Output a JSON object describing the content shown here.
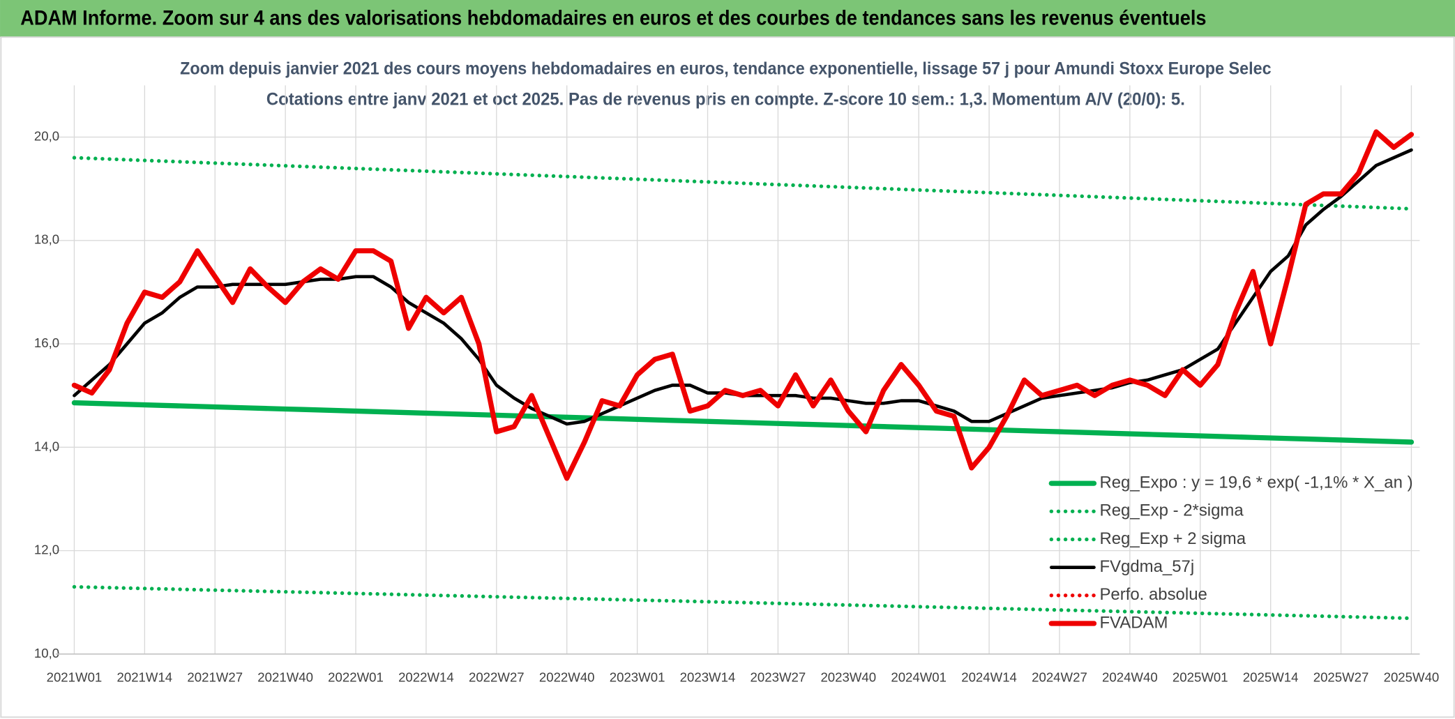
{
  "chart_data": {
    "type": "line",
    "header": "ADAM Informe. Zoom sur 4 ans des valorisations hebdomadaires en euros et des courbes de tendances sans les revenus éventuels",
    "title": "Zoom depuis janvier 2021 des cours moyens hebdomadaires en euros, tendance exponentielle, lissage 57 j pour Amundi Stoxx Europe Selec",
    "subtitle": "Cotations entre janv 2021 et oct 2025. Pas de revenus pris en compte. Z-score 10 sem.: 1,3. Momentum A/V (20/0): 5.",
    "categories": [
      "2021W01",
      null,
      null,
      null,
      "2021W14",
      null,
      null,
      null,
      "2021W27",
      null,
      null,
      null,
      "2021W40",
      null,
      null,
      null,
      "2022W01",
      null,
      null,
      null,
      "2022W14",
      null,
      null,
      null,
      "2022W27",
      null,
      null,
      null,
      "2022W40",
      null,
      null,
      null,
      "2023W01",
      null,
      null,
      null,
      "2023W14",
      null,
      null,
      null,
      "2023W27",
      null,
      null,
      null,
      "2023W40",
      null,
      null,
      null,
      "2024W01",
      null,
      null,
      null,
      "2024W14",
      null,
      null,
      null,
      "2024W27",
      null,
      null,
      null,
      "2024W40",
      null,
      null,
      null,
      "2025W01",
      null,
      null,
      null,
      "2025W14",
      null,
      null,
      null,
      "2025W27",
      null,
      null,
      null,
      "2025W40"
    ],
    "ylim": [
      10,
      21
    ],
    "yticks": [
      {
        "value": 10,
        "label": "10,0"
      },
      {
        "value": 12,
        "label": "12,0"
      },
      {
        "value": 14,
        "label": "14,0"
      },
      {
        "value": 16,
        "label": "16,0"
      },
      {
        "value": 18,
        "label": "18,0"
      },
      {
        "value": 20,
        "label": "20,0"
      }
    ],
    "grid": true,
    "legend": "lower right",
    "series": [
      {
        "name": "Reg_Expo : y = 19,6 * exp( -1,1% *  X_an )",
        "color": "#00b050",
        "line_style": "solid",
        "values": [
          14.86,
          14.85,
          14.84,
          14.83,
          14.82,
          14.81,
          14.8,
          14.79,
          14.78,
          14.77,
          14.76,
          14.75,
          14.74,
          14.73,
          14.72,
          14.71,
          14.7,
          14.69,
          14.68,
          14.67,
          14.66,
          14.65,
          14.64,
          14.63,
          14.62,
          14.61,
          14.6,
          14.59,
          14.58,
          14.57,
          14.56,
          14.55,
          14.54,
          14.53,
          14.52,
          14.51,
          14.5,
          14.49,
          14.48,
          14.47,
          14.46,
          14.45,
          14.44,
          14.43,
          14.42,
          14.41,
          14.4,
          14.39,
          14.38,
          14.37,
          14.36,
          14.35,
          14.34,
          14.33,
          14.32,
          14.31,
          14.3,
          14.29,
          14.28,
          14.27,
          14.26,
          14.25,
          14.24,
          14.23,
          14.22,
          14.21,
          14.2,
          14.19,
          14.18,
          14.17,
          14.16,
          14.15,
          14.14,
          14.13,
          14.12,
          14.11,
          14.1
        ]
      },
      {
        "name": "Reg_Exp - 2*sigma",
        "color": "#00b050",
        "line_style": "dotted",
        "values": [
          11.3,
          11.292,
          11.284,
          11.276,
          11.268,
          11.26,
          11.252,
          11.244,
          11.236,
          11.228,
          11.22,
          11.212,
          11.204,
          11.196,
          11.188,
          11.18,
          11.172,
          11.164,
          11.156,
          11.148,
          11.14,
          11.132,
          11.124,
          11.116,
          11.108,
          11.1,
          11.092,
          11.084,
          11.076,
          11.068,
          11.06,
          11.052,
          11.044,
          11.036,
          11.028,
          11.02,
          11.012,
          11.004,
          10.996,
          10.988,
          10.98,
          10.972,
          10.964,
          10.956,
          10.948,
          10.94,
          10.932,
          10.924,
          10.916,
          10.908,
          10.9,
          10.892,
          10.884,
          10.876,
          10.868,
          10.86,
          10.852,
          10.844,
          10.836,
          10.828,
          10.82,
          10.812,
          10.804,
          10.796,
          10.788,
          10.78,
          10.772,
          10.764,
          10.756,
          10.748,
          10.74,
          10.732,
          10.724,
          10.716,
          10.708,
          10.7,
          10.692
        ]
      },
      {
        "name": "Reg_Exp + 2 sigma",
        "color": "#00b050",
        "line_style": "dotted",
        "values": [
          19.6,
          19.587,
          19.574,
          19.561,
          19.548,
          19.535,
          19.522,
          19.509,
          19.496,
          19.483,
          19.47,
          19.457,
          19.444,
          19.431,
          19.418,
          19.405,
          19.392,
          19.379,
          19.366,
          19.353,
          19.34,
          19.327,
          19.314,
          19.301,
          19.288,
          19.275,
          19.262,
          19.249,
          19.236,
          19.223,
          19.21,
          19.197,
          19.184,
          19.171,
          19.158,
          19.145,
          19.132,
          19.119,
          19.106,
          19.093,
          19.08,
          19.067,
          19.054,
          19.041,
          19.028,
          19.015,
          19.002,
          18.989,
          18.976,
          18.963,
          18.95,
          18.937,
          18.924,
          18.911,
          18.898,
          18.885,
          18.872,
          18.859,
          18.846,
          18.833,
          18.82,
          18.807,
          18.794,
          18.781,
          18.768,
          18.755,
          18.742,
          18.729,
          18.716,
          18.703,
          18.69,
          18.677,
          18.664,
          18.651,
          18.638,
          18.625,
          18.612
        ]
      },
      {
        "name": "FVgdma_57j",
        "color": "#000000",
        "line_style": "solid",
        "values": [
          15.0,
          15.3,
          15.6,
          16.0,
          16.4,
          16.6,
          16.9,
          17.1,
          17.1,
          17.15,
          17.15,
          17.15,
          17.15,
          17.2,
          17.25,
          17.25,
          17.3,
          17.3,
          17.1,
          16.8,
          16.6,
          16.4,
          16.1,
          15.7,
          15.2,
          14.95,
          14.75,
          14.6,
          14.45,
          14.5,
          14.65,
          14.8,
          14.95,
          15.1,
          15.2,
          15.2,
          15.05,
          15.05,
          15.0,
          15.0,
          15.0,
          15.0,
          14.95,
          14.95,
          14.9,
          14.85,
          14.85,
          14.9,
          14.9,
          14.8,
          14.7,
          14.5,
          14.5,
          14.65,
          14.8,
          14.95,
          15.0,
          15.05,
          15.1,
          15.15,
          15.25,
          15.3,
          15.4,
          15.5,
          15.7,
          15.9,
          16.4,
          16.9,
          17.4,
          17.7,
          18.3,
          18.6,
          18.85,
          19.15,
          19.45,
          19.6,
          19.75
        ]
      },
      {
        "name": "Perfo. absolue",
        "color": "#ee0000",
        "line_style": "dotted"
      },
      {
        "name": "FVADAM",
        "color": "#ee0000",
        "line_style": "solid",
        "values": [
          15.2,
          15.05,
          15.5,
          16.4,
          17.0,
          16.9,
          17.2,
          17.8,
          17.3,
          16.8,
          17.45,
          17.1,
          16.8,
          17.2,
          17.45,
          17.25,
          17.8,
          17.8,
          17.6,
          16.3,
          16.9,
          16.6,
          16.9,
          16.0,
          14.3,
          14.4,
          15.0,
          14.2,
          13.4,
          14.1,
          14.9,
          14.8,
          15.4,
          15.7,
          15.8,
          14.7,
          14.8,
          15.1,
          15.0,
          15.1,
          14.8,
          15.4,
          14.8,
          15.3,
          14.7,
          14.3,
          15.1,
          15.6,
          15.2,
          14.7,
          14.6,
          13.6,
          14.0,
          14.6,
          15.3,
          15.0,
          15.1,
          15.2,
          15.0,
          15.2,
          15.3,
          15.2,
          15.0,
          15.5,
          15.2,
          15.6,
          16.6,
          17.4,
          16.0,
          17.3,
          18.7,
          18.9,
          18.9,
          19.3,
          20.1,
          19.8,
          20.05
        ]
      }
    ]
  }
}
